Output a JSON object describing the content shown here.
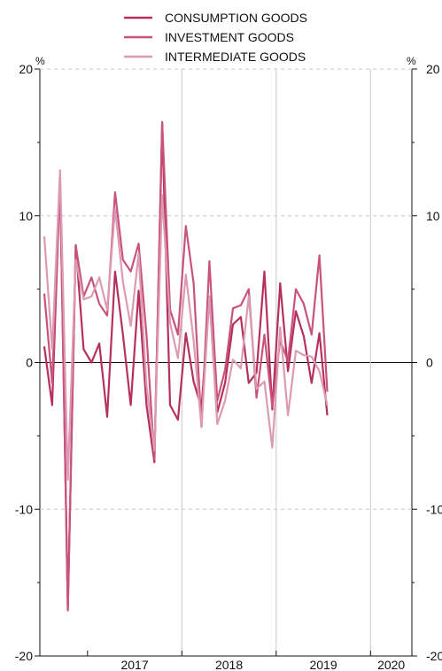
{
  "chart_data": {
    "type": "line",
    "unit_left": "%",
    "unit_right": "%",
    "ylim": [
      -20,
      20
    ],
    "yticks": [
      -20,
      -10,
      0,
      10,
      20
    ],
    "x_start": "2016-07",
    "year_labels": [
      "2017",
      "2018",
      "2019",
      "2020"
    ],
    "colors": {
      "consumption": "#b5305c",
      "investment": "#c8537d",
      "intermediate": "#dd9ab3"
    },
    "series": [
      {
        "key": "consumption",
        "name": "CONSUMPTION GOODS",
        "values": [
          1.1,
          -2.9,
          12.5,
          -16.8,
          8.0,
          0.9,
          0.0,
          1.3,
          -3.7,
          6.2,
          1.9,
          -2.9,
          4.9,
          -2.9,
          -6.8,
          16.3,
          -2.9,
          -3.9,
          2.0,
          -1.3,
          -3.1,
          4.5,
          -3.4,
          -1.4,
          2.6,
          3.1,
          -1.4,
          -0.7,
          6.2,
          -3.2,
          5.4,
          -0.6,
          3.5,
          1.8,
          -1.4,
          2.0,
          -3.6
        ]
      },
      {
        "key": "investment",
        "name": "INVESTMENT GOODS",
        "values": [
          4.7,
          -1.4,
          12.5,
          -16.9,
          8.0,
          4.5,
          5.8,
          4.0,
          3.2,
          11.6,
          7.0,
          6.2,
          8.1,
          1.9,
          -6.6,
          16.4,
          3.6,
          1.9,
          9.3,
          5.4,
          -4.4,
          6.9,
          -2.6,
          -0.5,
          3.7,
          3.9,
          5.0,
          -2.4,
          1.9,
          -3.0,
          1.5,
          0.1,
          5.0,
          4.0,
          1.9,
          7.3,
          -2.0
        ]
      },
      {
        "key": "intermediate",
        "name": "INTERMEDIATE GOODS",
        "values": [
          8.6,
          0.9,
          13.1,
          -8.0,
          7.0,
          4.3,
          4.5,
          5.8,
          3.6,
          10.5,
          5.5,
          2.5,
          7.4,
          -1.6,
          -6.0,
          11.4,
          2.7,
          0.3,
          6.0,
          1.5,
          -4.4,
          4.5,
          -4.2,
          -2.6,
          0.2,
          -0.4,
          4.5,
          -1.8,
          -1.3,
          -5.8,
          2.4,
          -3.6,
          0.8,
          0.5,
          0.4,
          -0.6,
          -2.9
        ]
      }
    ]
  }
}
